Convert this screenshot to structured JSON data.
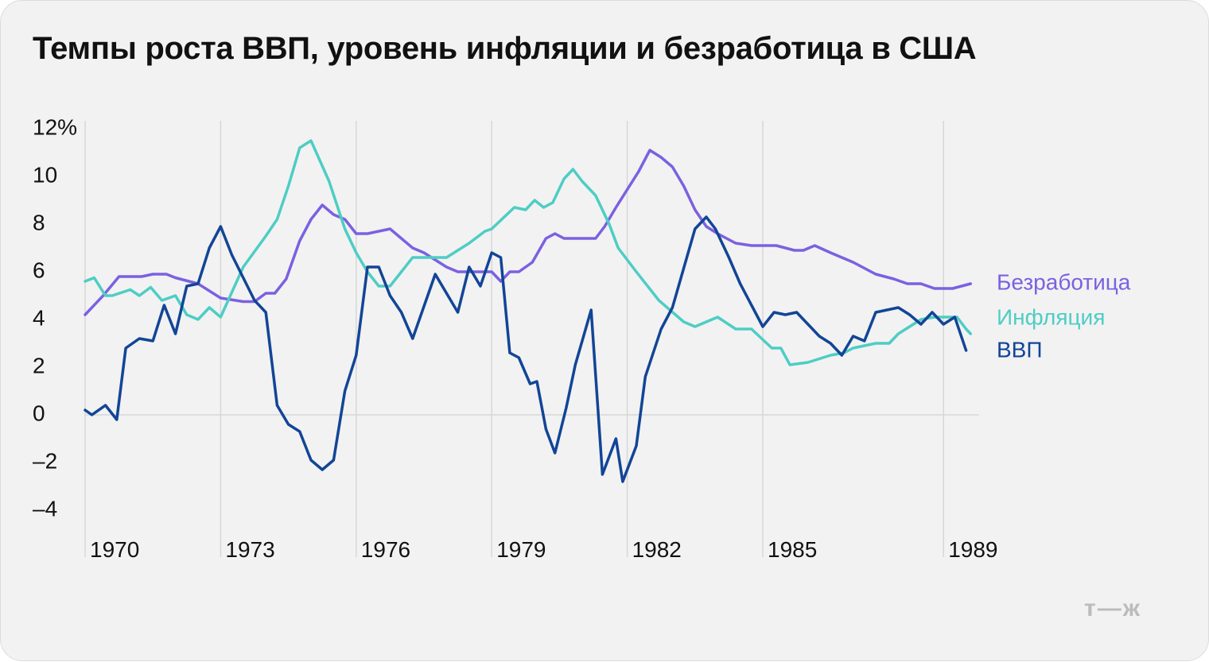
{
  "title": "Темпы роста ВВП, уровень инфляции и безработица в США",
  "logo": "т—ж",
  "colors": {
    "unemployment": "#7B61E0",
    "inflation": "#4ECDC4",
    "gdp": "#124596",
    "grid": "#d7d7d7"
  },
  "chart_data": {
    "type": "line",
    "title": "Темпы роста ВВП, уровень инфляции и безработица в США",
    "xlim": [
      1969.8,
      1989.6
    ],
    "ylim": [
      -4,
      12
    ],
    "y_ticks": [
      {
        "value": 12,
        "label": "12%"
      },
      {
        "value": 10,
        "label": "10"
      },
      {
        "value": 8,
        "label": "8"
      },
      {
        "value": 6,
        "label": "6"
      },
      {
        "value": 4,
        "label": "4"
      },
      {
        "value": 2,
        "label": "2"
      },
      {
        "value": 0,
        "label": "0"
      },
      {
        "value": -2,
        "label": "–2"
      },
      {
        "value": -4,
        "label": "–4"
      }
    ],
    "x_ticks": [
      {
        "value": 1970,
        "label": "1970"
      },
      {
        "value": 1973,
        "label": "1973"
      },
      {
        "value": 1976,
        "label": "1976"
      },
      {
        "value": 1979,
        "label": "1979"
      },
      {
        "value": 1982,
        "label": "1982"
      },
      {
        "value": 1985,
        "label": "1985"
      },
      {
        "value": 1989,
        "label": "1989"
      }
    ],
    "grid": "vertical lines at x ticks, zero line",
    "legend": "right, at line ends",
    "series": [
      {
        "name": "Безработица",
        "key": "unemployment",
        "points": [
          [
            1970.0,
            4.2
          ],
          [
            1970.4,
            5.0
          ],
          [
            1970.75,
            5.8
          ],
          [
            1971.25,
            5.8
          ],
          [
            1971.5,
            5.9
          ],
          [
            1971.8,
            5.9
          ],
          [
            1972.0,
            5.75
          ],
          [
            1972.5,
            5.5
          ],
          [
            1973.0,
            4.9
          ],
          [
            1973.5,
            4.75
          ],
          [
            1973.75,
            4.75
          ],
          [
            1974.0,
            5.1
          ],
          [
            1974.2,
            5.1
          ],
          [
            1974.45,
            5.7
          ],
          [
            1974.75,
            7.3
          ],
          [
            1975.0,
            8.2
          ],
          [
            1975.25,
            8.8
          ],
          [
            1975.5,
            8.4
          ],
          [
            1975.75,
            8.2
          ],
          [
            1976.0,
            7.6
          ],
          [
            1976.25,
            7.6
          ],
          [
            1976.75,
            7.8
          ],
          [
            1977.0,
            7.4
          ],
          [
            1977.25,
            7.0
          ],
          [
            1977.5,
            6.8
          ],
          [
            1978.0,
            6.2
          ],
          [
            1978.25,
            6.0
          ],
          [
            1978.5,
            6.0
          ],
          [
            1979.0,
            6.0
          ],
          [
            1979.2,
            5.6
          ],
          [
            1979.4,
            6.0
          ],
          [
            1979.6,
            6.0
          ],
          [
            1979.9,
            6.4
          ],
          [
            1980.2,
            7.4
          ],
          [
            1980.4,
            7.6
          ],
          [
            1980.6,
            7.4
          ],
          [
            1980.9,
            7.4
          ],
          [
            1981.3,
            7.4
          ],
          [
            1981.5,
            7.9
          ],
          [
            1981.75,
            8.7
          ],
          [
            1982.25,
            10.2
          ],
          [
            1982.5,
            11.1
          ],
          [
            1982.75,
            10.8
          ],
          [
            1983.0,
            10.4
          ],
          [
            1983.25,
            9.6
          ],
          [
            1983.5,
            8.6
          ],
          [
            1983.75,
            7.9
          ],
          [
            1984.0,
            7.6
          ],
          [
            1984.4,
            7.2
          ],
          [
            1984.75,
            7.1
          ],
          [
            1985.3,
            7.1
          ],
          [
            1985.5,
            7.0
          ],
          [
            1985.7,
            6.9
          ],
          [
            1985.9,
            6.9
          ],
          [
            1986.15,
            7.1
          ],
          [
            1986.5,
            6.8
          ],
          [
            1987.0,
            6.4
          ],
          [
            1987.5,
            5.9
          ],
          [
            1987.9,
            5.7
          ],
          [
            1988.2,
            5.5
          ],
          [
            1988.5,
            5.5
          ],
          [
            1988.8,
            5.3
          ],
          [
            1989.2,
            5.3
          ],
          [
            1989.6,
            5.5
          ]
        ]
      },
      {
        "name": "Инфляция",
        "key": "inflation",
        "points": [
          [
            1970.0,
            5.6
          ],
          [
            1970.2,
            5.75
          ],
          [
            1970.45,
            5.0
          ],
          [
            1970.6,
            5.0
          ],
          [
            1971.0,
            5.25
          ],
          [
            1971.2,
            5.0
          ],
          [
            1971.45,
            5.35
          ],
          [
            1971.7,
            4.8
          ],
          [
            1972.0,
            5.0
          ],
          [
            1972.25,
            4.2
          ],
          [
            1972.5,
            4.0
          ],
          [
            1972.75,
            4.5
          ],
          [
            1973.0,
            4.1
          ],
          [
            1973.5,
            6.2
          ],
          [
            1974.0,
            7.5
          ],
          [
            1974.25,
            8.2
          ],
          [
            1974.5,
            9.6
          ],
          [
            1974.75,
            11.2
          ],
          [
            1975.0,
            11.5
          ],
          [
            1975.4,
            9.8
          ],
          [
            1975.75,
            7.8
          ],
          [
            1976.0,
            6.8
          ],
          [
            1976.25,
            6.0
          ],
          [
            1976.5,
            5.4
          ],
          [
            1976.75,
            5.4
          ],
          [
            1977.0,
            6.0
          ],
          [
            1977.25,
            6.6
          ],
          [
            1977.75,
            6.6
          ],
          [
            1978.0,
            6.6
          ],
          [
            1978.5,
            7.2
          ],
          [
            1978.85,
            7.7
          ],
          [
            1979.0,
            7.8
          ],
          [
            1979.5,
            8.7
          ],
          [
            1979.75,
            8.6
          ],
          [
            1979.95,
            9.0
          ],
          [
            1980.15,
            8.7
          ],
          [
            1980.35,
            8.9
          ],
          [
            1980.6,
            9.9
          ],
          [
            1980.8,
            10.3
          ],
          [
            1981.0,
            9.8
          ],
          [
            1981.3,
            9.2
          ],
          [
            1981.6,
            8.0
          ],
          [
            1981.8,
            7.0
          ],
          [
            1982.2,
            6.0
          ],
          [
            1982.7,
            4.8
          ],
          [
            1983.25,
            3.9
          ],
          [
            1983.5,
            3.7
          ],
          [
            1983.75,
            3.9
          ],
          [
            1984.0,
            4.1
          ],
          [
            1984.4,
            3.6
          ],
          [
            1984.75,
            3.6
          ],
          [
            1985.2,
            2.8
          ],
          [
            1985.4,
            2.8
          ],
          [
            1985.6,
            2.1
          ],
          [
            1986.0,
            2.2
          ],
          [
            1986.5,
            2.5
          ],
          [
            1986.8,
            2.6
          ],
          [
            1987.0,
            2.8
          ],
          [
            1987.5,
            3.0
          ],
          [
            1987.8,
            3.0
          ],
          [
            1988.0,
            3.4
          ],
          [
            1988.5,
            4.0
          ],
          [
            1988.8,
            4.1
          ],
          [
            1989.3,
            4.1
          ],
          [
            1989.5,
            3.6
          ],
          [
            1989.6,
            3.4
          ]
        ]
      },
      {
        "name": "ВВП",
        "key": "gdp",
        "points": [
          [
            1970.0,
            0.2
          ],
          [
            1970.15,
            0.0
          ],
          [
            1970.45,
            0.4
          ],
          [
            1970.7,
            -0.2
          ],
          [
            1970.9,
            2.8
          ],
          [
            1971.2,
            3.2
          ],
          [
            1971.5,
            3.1
          ],
          [
            1971.75,
            4.6
          ],
          [
            1972.0,
            3.4
          ],
          [
            1972.25,
            5.4
          ],
          [
            1972.5,
            5.5
          ],
          [
            1972.75,
            7.0
          ],
          [
            1973.0,
            7.9
          ],
          [
            1973.25,
            6.7
          ],
          [
            1973.75,
            4.8
          ],
          [
            1974.0,
            4.3
          ],
          [
            1974.25,
            0.4
          ],
          [
            1974.5,
            -0.4
          ],
          [
            1974.75,
            -0.7
          ],
          [
            1975.0,
            -1.9
          ],
          [
            1975.25,
            -2.3
          ],
          [
            1975.5,
            -1.9
          ],
          [
            1975.75,
            1.0
          ],
          [
            1976.0,
            2.5
          ],
          [
            1976.25,
            6.2
          ],
          [
            1976.5,
            6.2
          ],
          [
            1976.75,
            5.0
          ],
          [
            1977.0,
            4.3
          ],
          [
            1977.25,
            3.2
          ],
          [
            1977.75,
            5.9
          ],
          [
            1978.25,
            4.3
          ],
          [
            1978.5,
            6.2
          ],
          [
            1978.75,
            5.4
          ],
          [
            1979.0,
            6.8
          ],
          [
            1979.2,
            6.6
          ],
          [
            1979.4,
            2.6
          ],
          [
            1979.6,
            2.4
          ],
          [
            1979.85,
            1.3
          ],
          [
            1980.0,
            1.4
          ],
          [
            1980.2,
            -0.6
          ],
          [
            1980.4,
            -1.6
          ],
          [
            1980.65,
            0.3
          ],
          [
            1980.85,
            2.1
          ],
          [
            1981.2,
            4.4
          ],
          [
            1981.45,
            -2.5
          ],
          [
            1981.75,
            -1.0
          ],
          [
            1981.9,
            -2.8
          ],
          [
            1982.2,
            -1.3
          ],
          [
            1982.4,
            1.6
          ],
          [
            1982.75,
            3.6
          ],
          [
            1983.0,
            4.5
          ],
          [
            1983.5,
            7.8
          ],
          [
            1983.75,
            8.3
          ],
          [
            1983.95,
            7.8
          ],
          [
            1984.25,
            6.6
          ],
          [
            1984.5,
            5.5
          ],
          [
            1984.75,
            4.6
          ],
          [
            1985.0,
            3.7
          ],
          [
            1985.25,
            4.3
          ],
          [
            1985.5,
            4.2
          ],
          [
            1985.75,
            4.3
          ],
          [
            1986.0,
            3.8
          ],
          [
            1986.25,
            3.3
          ],
          [
            1986.5,
            3.0
          ],
          [
            1986.75,
            2.5
          ],
          [
            1987.0,
            3.3
          ],
          [
            1987.25,
            3.1
          ],
          [
            1987.5,
            4.3
          ],
          [
            1987.75,
            4.4
          ],
          [
            1988.0,
            4.5
          ],
          [
            1988.25,
            4.2
          ],
          [
            1988.5,
            3.8
          ],
          [
            1988.75,
            4.3
          ],
          [
            1989.0,
            3.8
          ],
          [
            1989.25,
            4.1
          ],
          [
            1989.5,
            2.7
          ]
        ]
      }
    ]
  }
}
